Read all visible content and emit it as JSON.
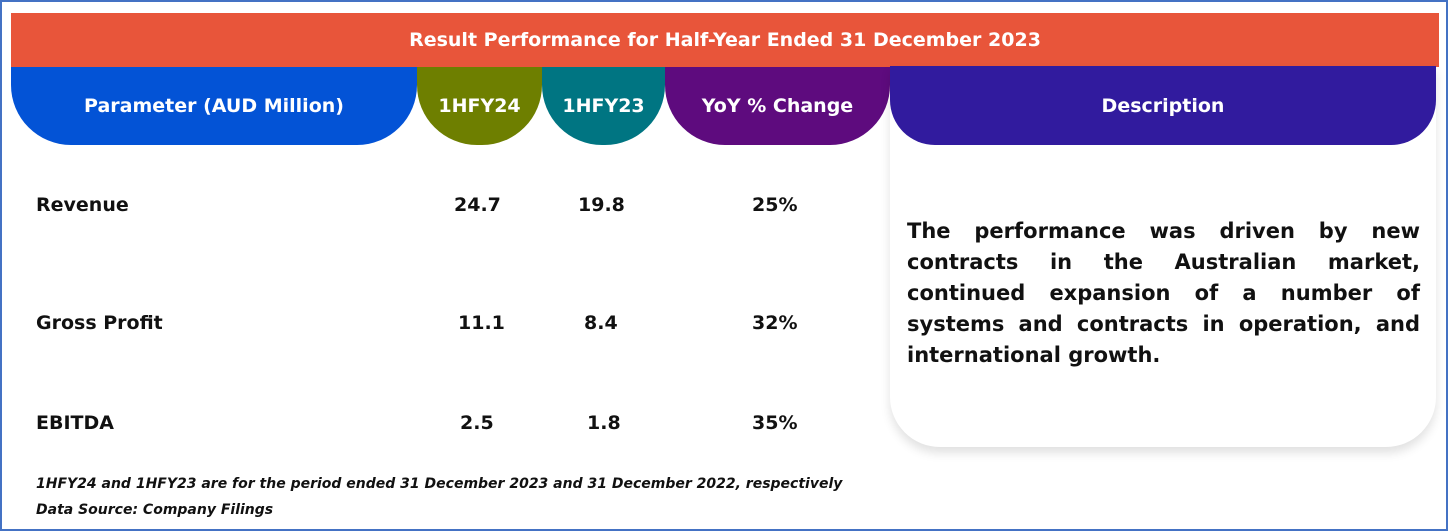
{
  "title": "Result Performance for Half-Year Ended 31 December 2023",
  "headers": {
    "parameter": "Parameter (AUD Million)",
    "h1": "1HFY24",
    "h2": "1HFY23",
    "yoy": "YoY % Change",
    "description": "Description"
  },
  "colors": {
    "title": "#E8553A",
    "parameter": "#0353D6",
    "h1": "#6E7F00",
    "h2": "#007582",
    "yoy": "#5E0B7E",
    "description": "#311B9E"
  },
  "rows": [
    {
      "parameter": "Revenue",
      "h1": "24.7",
      "h2": "19.8",
      "yoy": "25%"
    },
    {
      "parameter": "Gross Profit",
      "h1": "11.1",
      "h2": "8.4",
      "yoy": "32%"
    },
    {
      "parameter": "EBITDA",
      "h1": "2.5",
      "h2": "1.8",
      "yoy": "35%"
    }
  ],
  "description": "The performance was driven by new contracts in the Australian market, continued expansion of a number of systems and contracts in operation, and international growth.",
  "notes": [
    "1HFY24 and 1HFY23 are for the period ended 31 December 2023 and 31 December 2022, respectively",
    "Data Source: Company Filings"
  ]
}
